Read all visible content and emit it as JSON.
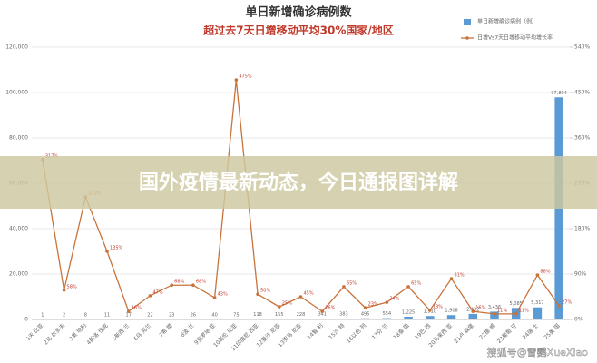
{
  "chart_data": {
    "type": "bar_line",
    "title": "单日新增确诊病例数",
    "subtitle": "超过去7天日增移动平均30%国家/地区",
    "categories": [
      "1天 比亚",
      "2马 尔多夫",
      "3奥 地利",
      "4斯洛 伐克",
      "5新西 兰",
      "6乌 克兰",
      "7希 腊",
      "8波 兰",
      "9克罗地 亚",
      "10哥伦 比亚",
      "11印度尼 西亚",
      "12爱沙 尼亚",
      "13罗马 尼亚",
      "14智 利",
      "15沙 特",
      "16以色 列",
      "17芬 兰",
      "18泰 国",
      "19巴 西",
      "20马来西 亚",
      "21卢 森堡",
      "22挪 威",
      "23葡萄 牙",
      "24瑞 士",
      "25美 国"
    ],
    "series": [
      {
        "name": "单日新增确诊病例（例）",
        "color": "#5b9bd5",
        "values": [
          1,
          2,
          8,
          11,
          17,
          22,
          23,
          26,
          40,
          75,
          118,
          155,
          228,
          341,
          383,
          495,
          554,
          1225,
          1510,
          1908,
          2432,
          3436,
          5085,
          5317,
          97894
        ],
        "value_labels": [
          "1",
          "2",
          "8",
          "11",
          "17",
          "22",
          "23",
          "26",
          "40",
          "75",
          "118",
          "155",
          "228",
          "341",
          "383",
          "495",
          "554",
          "1,225",
          "1,510",
          "1,908",
          "2,432",
          "3,436",
          "5,085",
          "5,317",
          "97,894"
        ]
      },
      {
        "name": "日增Vs7天日增移动平均增长率",
        "color": "#c8733a",
        "axis": "y2",
        "values": [
          317,
          58,
          243,
          135,
          16,
          47,
          68,
          68,
          43,
          475,
          50,
          25,
          45,
          16,
          65,
          23,
          34,
          65,
          18,
          81,
          16,
          11,
          11,
          88,
          27
        ],
        "value_labels": [
          "317%",
          "58%",
          "243%",
          "135%",
          "16%",
          "47%",
          "68%",
          "68%",
          "43%",
          "475%",
          "50%",
          "25%",
          "45%",
          "16%",
          "65%",
          "23%",
          "34%",
          "65%",
          "18%",
          "81%",
          "16%",
          "11%",
          "11%",
          "88%",
          "27%"
        ]
      }
    ],
    "ylim": [
      0,
      120000
    ],
    "yticks": [
      0,
      {
        "value": 20000,
        "label": "20,000"
      },
      {
        "value": 40000,
        "label": "40,000"
      },
      {
        "value": 60000,
        "label": "60,000"
      },
      {
        "value": 80000,
        "label": "80,000"
      },
      {
        "value": 100000,
        "label": "100,000"
      },
      {
        "value": 120000,
        "label": "120,000"
      }
    ],
    "y2lim": [
      0,
      540
    ],
    "y2ticks": [
      {
        "value": 0,
        "label": "0%"
      },
      {
        "value": 90,
        "label": "90%"
      },
      {
        "value": 180,
        "label": "180%"
      },
      {
        "value": 270,
        "label": "270%"
      },
      {
        "value": 360,
        "label": "360%"
      },
      {
        "value": 450,
        "label": "450%"
      },
      {
        "value": 540,
        "label": "540%"
      }
    ],
    "grid": true,
    "legend": "top-right"
  },
  "overlay_title": "国外疫情最新动态，今日通报图详解",
  "watermark": "搜狐号@雪鹦XueXiao"
}
